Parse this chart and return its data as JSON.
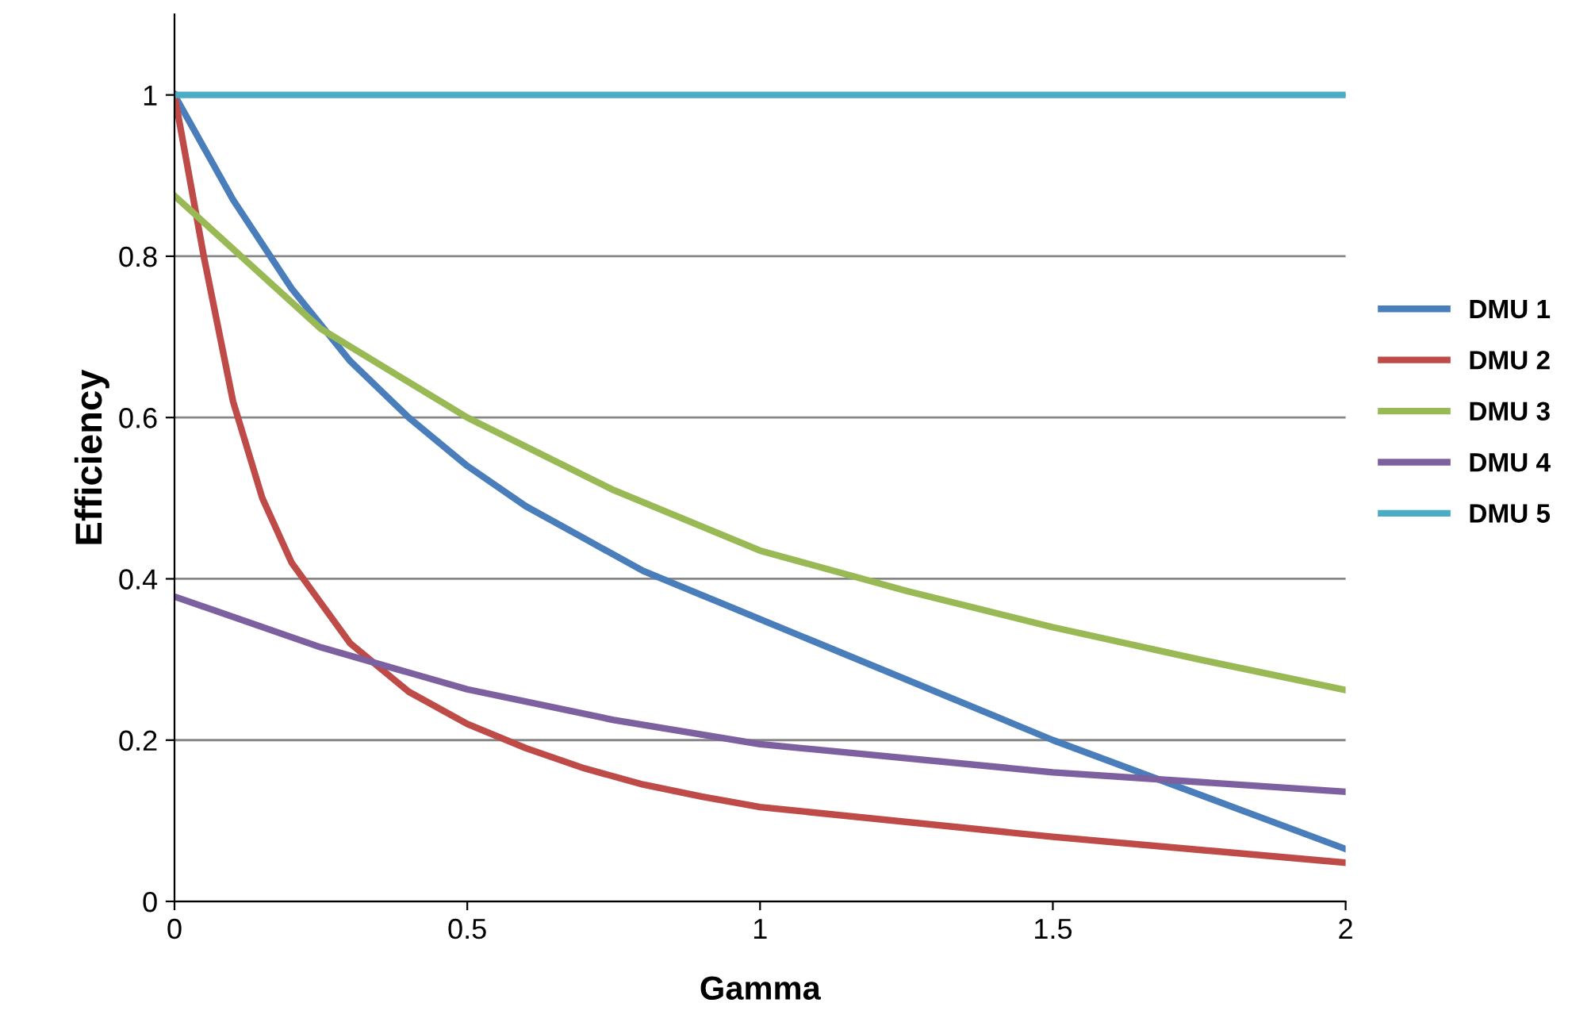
{
  "chart_data": {
    "type": "line",
    "xlabel": "Gamma",
    "ylabel": "Efficiency",
    "xlim": [
      0,
      2
    ],
    "ylim": [
      0,
      1.1
    ],
    "xticks": [
      0,
      0.5,
      1,
      1.5,
      2
    ],
    "yticks": [
      0,
      0.2,
      0.4,
      0.6,
      0.8,
      1
    ],
    "grid": "y",
    "legend": "right",
    "marker": "none",
    "line_style": "solid",
    "series": [
      {
        "name": "DMU 1",
        "color": "#4a7ebb",
        "x": [
          0,
          0.1,
          0.2,
          0.3,
          0.4,
          0.5,
          0.6,
          0.7,
          0.8,
          0.9,
          1,
          1.5,
          2
        ],
        "values": [
          1,
          0.87,
          0.76,
          0.67,
          0.6,
          0.54,
          0.49,
          0.45,
          0.41,
          0.38,
          0.35,
          0.2,
          0.065
        ]
      },
      {
        "name": "DMU 2",
        "color": "#be4b48",
        "x": [
          0,
          0.05,
          0.1,
          0.15,
          0.2,
          0.3,
          0.4,
          0.5,
          0.6,
          0.7,
          0.8,
          0.9,
          1,
          1.5,
          2
        ],
        "values": [
          1,
          0.8,
          0.62,
          0.5,
          0.42,
          0.32,
          0.26,
          0.22,
          0.19,
          0.165,
          0.145,
          0.13,
          0.117,
          0.08,
          0.048
        ]
      },
      {
        "name": "DMU 3",
        "color": "#98b954",
        "x": [
          0,
          0.25,
          0.5,
          0.75,
          1,
          1.25,
          1.5,
          1.75,
          2
        ],
        "values": [
          0.875,
          0.71,
          0.6,
          0.51,
          0.435,
          0.385,
          0.34,
          0.3,
          0.262
        ]
      },
      {
        "name": "DMU 4",
        "color": "#7d60a0",
        "x": [
          0,
          0.25,
          0.5,
          0.75,
          1,
          1.5,
          2
        ],
        "values": [
          0.378,
          0.315,
          0.263,
          0.225,
          0.195,
          0.16,
          0.136
        ]
      },
      {
        "name": "DMU 5",
        "color": "#4bacc6",
        "x": [
          0,
          2
        ],
        "values": [
          1,
          1
        ]
      }
    ]
  }
}
